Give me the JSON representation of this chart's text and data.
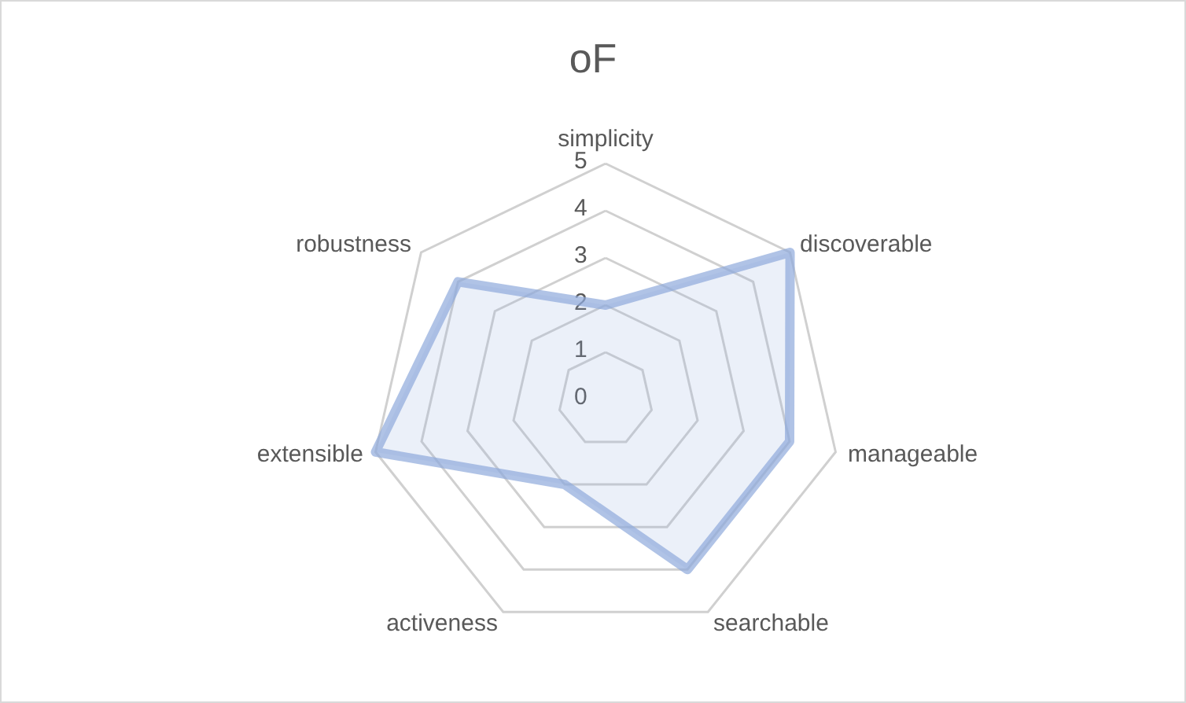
{
  "chart_data": {
    "type": "radar",
    "title": "oF",
    "categories": [
      "simplicity",
      "discoverable",
      "manageable",
      "searchable",
      "activeness",
      "extensible",
      "robustness"
    ],
    "series": [
      {
        "color": "#8faadc",
        "values": [
          2,
          5,
          4,
          4,
          2,
          5,
          4
        ]
      }
    ],
    "ylim": [
      0,
      5
    ],
    "yticks": [
      0,
      1,
      2,
      3,
      4,
      5
    ],
    "grid": true
  }
}
